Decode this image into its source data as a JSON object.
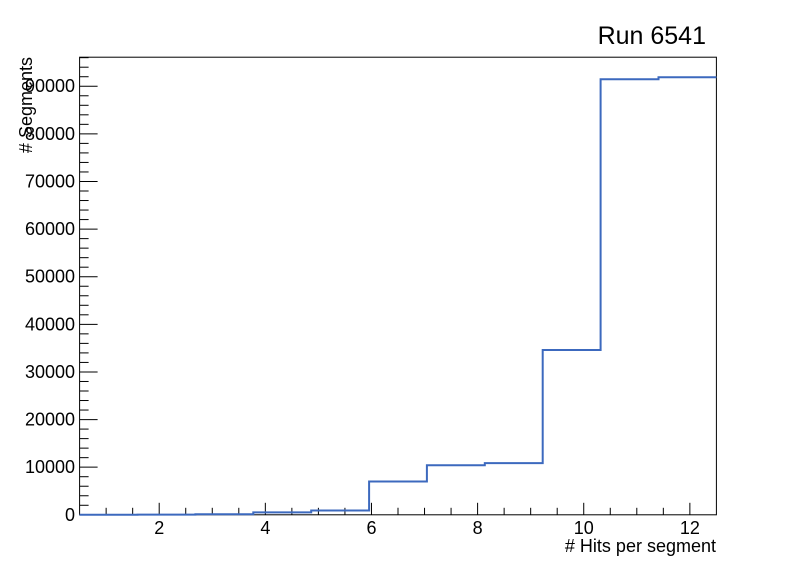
{
  "chart_data": {
    "type": "bar",
    "variant": "step-histogram",
    "title": "Run 6541",
    "xlabel": "# Hits per segment",
    "ylabel": "# Segments",
    "xlim": [
      0.5,
      12.5
    ],
    "ylim": [
      0,
      96100
    ],
    "bin_edges": [
      0.5,
      1.5909,
      2.6818,
      3.7727,
      4.8636,
      5.9545,
      7.0455,
      8.1364,
      9.2273,
      10.3182,
      11.4091,
      12.5
    ],
    "values": [
      15,
      40,
      120,
      500,
      900,
      7000,
      10400,
      10850,
      34600,
      91450,
      91900
    ],
    "x_major_ticks": [
      2,
      4,
      6,
      8,
      10,
      12
    ],
    "y_major_ticks": [
      0,
      10000,
      20000,
      30000,
      40000,
      50000,
      60000,
      70000,
      80000,
      90000
    ],
    "x_minor_tick_step": 0.5,
    "y_minor_tick_step": 2000,
    "grid": false,
    "legend": null,
    "line_color": "#3c69be",
    "axis_color": "#000000",
    "background_color": "#ffffff"
  }
}
